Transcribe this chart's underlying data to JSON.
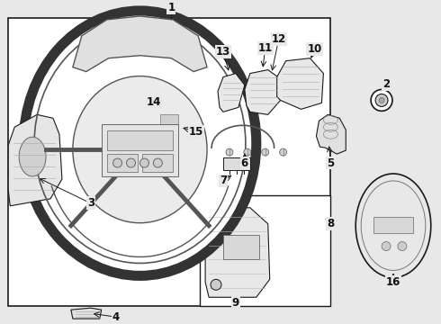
{
  "bg": "#e8e8e8",
  "lc": "#1a1a1a",
  "white": "#ffffff",
  "fig_w": 4.9,
  "fig_h": 3.6,
  "dpi": 100
}
